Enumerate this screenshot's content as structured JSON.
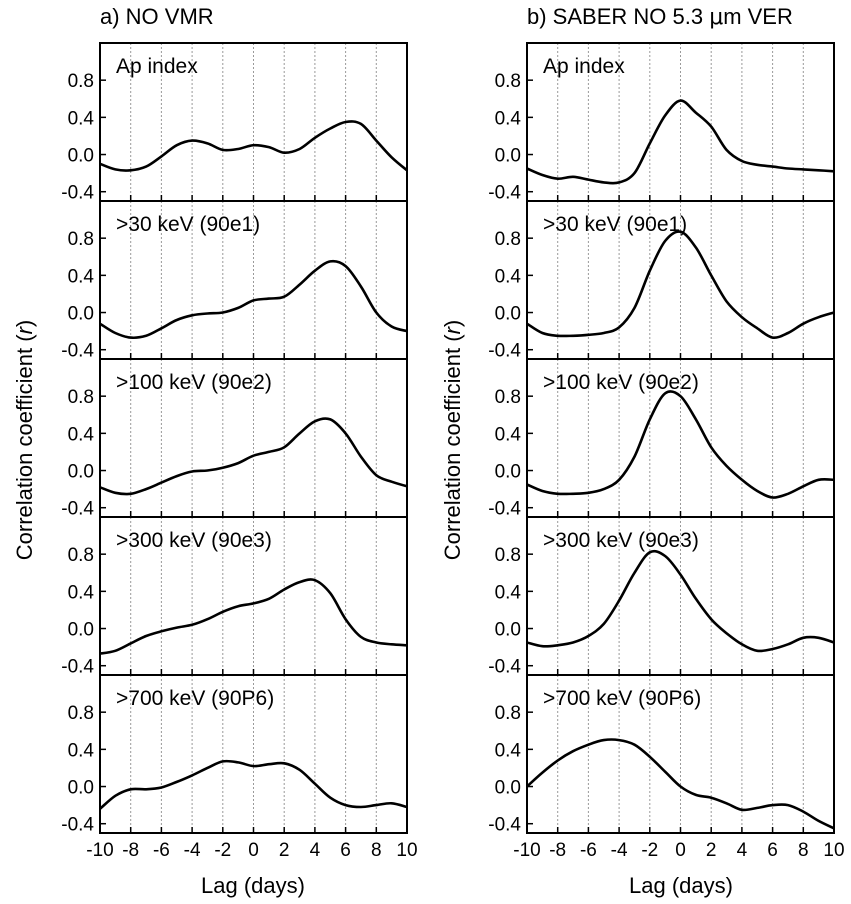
{
  "left_title": "a) NO VMR",
  "right_title_pre": "b) SABER NO 5.3 ",
  "right_title_mu": "μ",
  "right_title_post": "m VER",
  "ylabel_pre": "Correlation coefficient (",
  "ylabel_r": "r",
  "ylabel_post": ")",
  "xlabel": "Lag (days)",
  "chart_data": {
    "type": "line",
    "xlim": [
      -10,
      10
    ],
    "ylim": [
      -0.5,
      1.2
    ],
    "x_ticks": [
      "-10",
      "-8",
      "-6",
      "-4",
      "-2",
      "0",
      "2",
      "4",
      "6",
      "8",
      "10"
    ],
    "y_ticks": [
      "0.8",
      "0.4",
      "0.0",
      "-0.4"
    ],
    "grid": "vertical dotted lines at even lags",
    "panels": [
      {
        "col": "left",
        "label": "Ap index",
        "x": [
          -10,
          -9,
          -8,
          -7,
          -6,
          -5,
          -4,
          -3,
          -2,
          -1,
          0,
          1,
          2,
          3,
          4,
          5,
          6,
          7,
          8,
          9,
          10
        ],
        "y": [
          -0.1,
          -0.16,
          -0.17,
          -0.13,
          -0.02,
          0.1,
          0.15,
          0.12,
          0.05,
          0.06,
          0.1,
          0.08,
          0.02,
          0.06,
          0.18,
          0.28,
          0.35,
          0.33,
          0.15,
          -0.03,
          -0.17
        ]
      },
      {
        "col": "left",
        "label": ">30 keV (90e1)",
        "x": [
          -10,
          -9,
          -8,
          -7,
          -6,
          -5,
          -4,
          -3,
          -2,
          -1,
          0,
          1,
          2,
          3,
          4,
          5,
          6,
          7,
          8,
          9,
          10
        ],
        "y": [
          -0.12,
          -0.22,
          -0.27,
          -0.25,
          -0.17,
          -0.08,
          -0.03,
          -0.01,
          0.0,
          0.05,
          0.13,
          0.15,
          0.17,
          0.3,
          0.45,
          0.55,
          0.5,
          0.28,
          0.0,
          -0.15,
          -0.2
        ]
      },
      {
        "col": "left",
        "label": ">100 keV (90e2)",
        "x": [
          -10,
          -9,
          -8,
          -7,
          -6,
          -5,
          -4,
          -3,
          -2,
          -1,
          0,
          1,
          2,
          3,
          4,
          5,
          6,
          7,
          8,
          9,
          10
        ],
        "y": [
          -0.18,
          -0.24,
          -0.25,
          -0.2,
          -0.13,
          -0.06,
          -0.01,
          0.0,
          0.03,
          0.08,
          0.16,
          0.2,
          0.25,
          0.4,
          0.53,
          0.55,
          0.4,
          0.15,
          -0.05,
          -0.12,
          -0.17
        ]
      },
      {
        "col": "left",
        "label": ">300 keV (90e3)",
        "x": [
          -10,
          -9,
          -8,
          -7,
          -6,
          -5,
          -4,
          -3,
          -2,
          -1,
          0,
          1,
          2,
          3,
          4,
          5,
          6,
          7,
          8,
          9,
          10
        ],
        "y": [
          -0.27,
          -0.24,
          -0.16,
          -0.08,
          -0.03,
          0.01,
          0.04,
          0.1,
          0.18,
          0.24,
          0.27,
          0.32,
          0.42,
          0.5,
          0.52,
          0.38,
          0.1,
          -0.09,
          -0.15,
          -0.17,
          -0.18
        ]
      },
      {
        "col": "left",
        "label": ">700 keV (90P6)",
        "x": [
          -10,
          -9,
          -8,
          -7,
          -6,
          -5,
          -4,
          -3,
          -2,
          -1,
          0,
          1,
          2,
          3,
          4,
          5,
          6,
          7,
          8,
          9,
          10
        ],
        "y": [
          -0.24,
          -0.1,
          -0.03,
          -0.03,
          -0.01,
          0.05,
          0.12,
          0.2,
          0.27,
          0.26,
          0.22,
          0.24,
          0.25,
          0.18,
          0.03,
          -0.12,
          -0.2,
          -0.22,
          -0.2,
          -0.18,
          -0.22
        ]
      },
      {
        "col": "right",
        "label": "Ap index",
        "x": [
          -10,
          -9,
          -8,
          -7,
          -6,
          -5,
          -4,
          -3,
          -2,
          -1,
          0,
          1,
          2,
          3,
          4,
          5,
          6,
          7,
          8,
          9,
          10
        ],
        "y": [
          -0.15,
          -0.22,
          -0.26,
          -0.24,
          -0.27,
          -0.3,
          -0.3,
          -0.2,
          0.12,
          0.42,
          0.58,
          0.45,
          0.3,
          0.05,
          -0.07,
          -0.11,
          -0.13,
          -0.15,
          -0.16,
          -0.17,
          -0.18
        ]
      },
      {
        "col": "right",
        "label": ">30 keV (90e1)",
        "x": [
          -10,
          -9,
          -8,
          -7,
          -6,
          -5,
          -4,
          -3,
          -2,
          -1,
          0,
          1,
          2,
          3,
          4,
          5,
          6,
          7,
          8,
          9,
          10
        ],
        "y": [
          -0.12,
          -0.22,
          -0.25,
          -0.25,
          -0.24,
          -0.22,
          -0.16,
          0.05,
          0.45,
          0.77,
          0.87,
          0.7,
          0.4,
          0.12,
          -0.05,
          -0.17,
          -0.27,
          -0.22,
          -0.12,
          -0.05,
          0.0
        ]
      },
      {
        "col": "right",
        "label": ">100 keV (90e2)",
        "x": [
          -10,
          -9,
          -8,
          -7,
          -6,
          -5,
          -4,
          -3,
          -2,
          -1,
          0,
          1,
          2,
          3,
          4,
          5,
          6,
          7,
          8,
          9,
          10
        ],
        "y": [
          -0.15,
          -0.22,
          -0.25,
          -0.25,
          -0.24,
          -0.2,
          -0.1,
          0.15,
          0.55,
          0.83,
          0.8,
          0.55,
          0.25,
          0.05,
          -0.1,
          -0.22,
          -0.29,
          -0.25,
          -0.17,
          -0.1,
          -0.1
        ]
      },
      {
        "col": "right",
        "label": ">300 keV (90e3)",
        "x": [
          -10,
          -9,
          -8,
          -7,
          -6,
          -5,
          -4,
          -3,
          -2,
          -1,
          0,
          1,
          2,
          3,
          4,
          5,
          6,
          7,
          8,
          9,
          10
        ],
        "y": [
          -0.15,
          -0.19,
          -0.18,
          -0.15,
          -0.08,
          0.05,
          0.3,
          0.6,
          0.82,
          0.78,
          0.58,
          0.32,
          0.1,
          -0.05,
          -0.17,
          -0.24,
          -0.22,
          -0.17,
          -0.1,
          -0.1,
          -0.15
        ]
      },
      {
        "col": "right",
        "label": ">700 keV (90P6)",
        "x": [
          -10,
          -9,
          -8,
          -7,
          -6,
          -5,
          -4,
          -3,
          -2,
          -1,
          0,
          1,
          2,
          3,
          4,
          5,
          6,
          7,
          8,
          9,
          10
        ],
        "y": [
          0.0,
          0.15,
          0.28,
          0.38,
          0.45,
          0.5,
          0.5,
          0.45,
          0.32,
          0.16,
          0.0,
          -0.09,
          -0.12,
          -0.18,
          -0.25,
          -0.23,
          -0.2,
          -0.2,
          -0.27,
          -0.37,
          -0.45
        ]
      }
    ]
  }
}
